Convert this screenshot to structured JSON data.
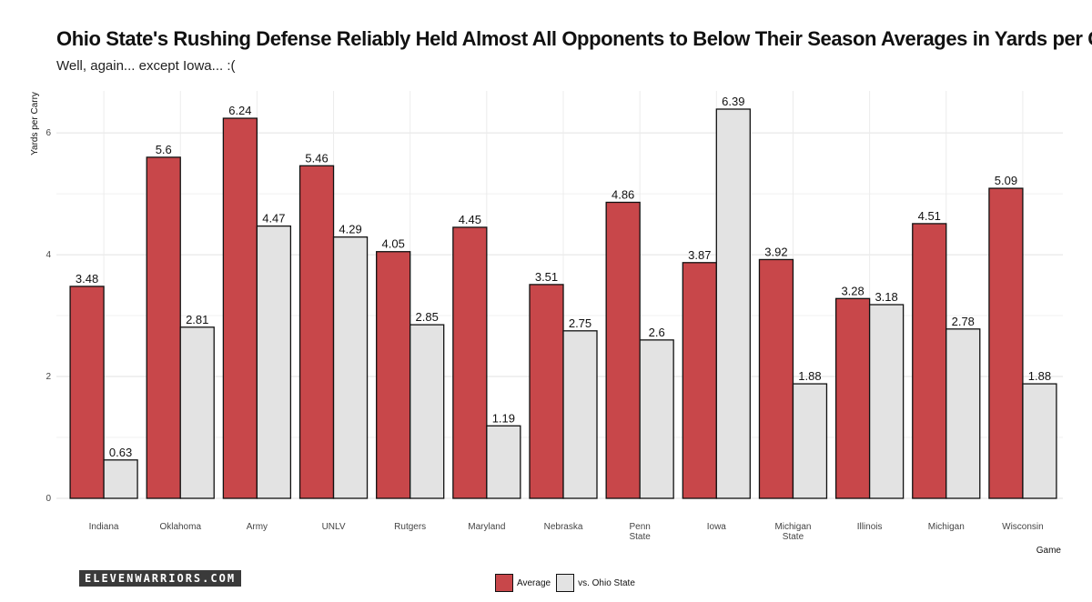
{
  "chart_data": {
    "type": "bar",
    "title": "Ohio State's Rushing Defense Reliably Held Almost All Opponents to Below Their Season Averages in Yards per Carry",
    "subtitle": "Well, again... except Iowa... :(",
    "xlabel": "Game",
    "ylabel": "Yards per Carry",
    "ylim": [
      0,
      6.39
    ],
    "yticks": [
      "0",
      "2",
      "4",
      "6"
    ],
    "categories": [
      [
        "Indiana"
      ],
      [
        "Oklahoma"
      ],
      [
        "Army"
      ],
      [
        "UNLV"
      ],
      [
        "Rutgers"
      ],
      [
        "Maryland"
      ],
      [
        "Nebraska"
      ],
      [
        "Penn",
        "State"
      ],
      [
        "Iowa"
      ],
      [
        "Michigan",
        "State"
      ],
      [
        "Illinois"
      ],
      [
        "Michigan"
      ],
      [
        "Wisconsin"
      ]
    ],
    "series": [
      {
        "name": "Average",
        "color": "#c8474a",
        "values": [
          3.48,
          5.6,
          6.24,
          5.46,
          4.05,
          4.45,
          3.51,
          4.86,
          3.87,
          3.92,
          3.28,
          4.51,
          5.09
        ],
        "labels": [
          "3.48",
          "5.6",
          "6.24",
          "5.46",
          "4.05",
          "4.45",
          "3.51",
          "4.86",
          "3.87",
          "3.92",
          "3.28",
          "4.51",
          "5.09"
        ]
      },
      {
        "name": "vs. Ohio State",
        "color": "#e3e3e3",
        "values": [
          0.63,
          2.81,
          4.47,
          4.29,
          2.85,
          1.19,
          2.75,
          2.6,
          6.39,
          1.88,
          3.18,
          2.78,
          1.88
        ],
        "labels": [
          "0.63",
          "2.81",
          "4.47",
          "4.29",
          "2.85",
          "1.19",
          "2.75",
          "2.6",
          "6.39",
          "1.88",
          "3.18",
          "2.78",
          "1.88"
        ]
      }
    ],
    "legend_position": "bottom"
  },
  "brand": "ELEVENWARRIORS.COM"
}
